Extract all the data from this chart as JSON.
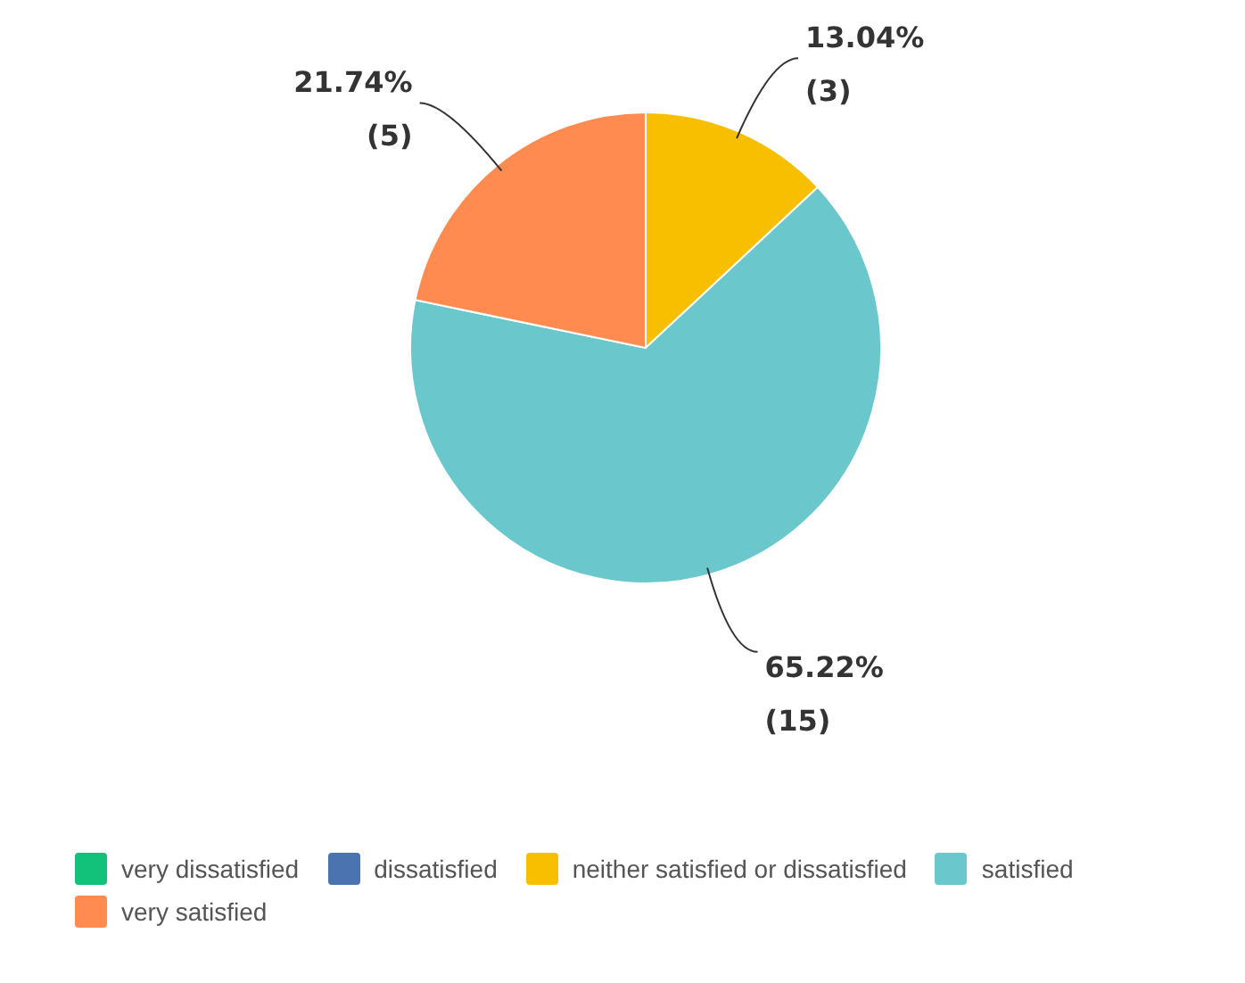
{
  "chart_data": {
    "type": "pie",
    "categories": [
      "very dissatisfied",
      "dissatisfied",
      "neither satisfied or dissatisfied",
      "satisfied",
      "very satisfied"
    ],
    "values": [
      0,
      0,
      3,
      15,
      5
    ],
    "colors": [
      "#13c27a",
      "#4b73b0",
      "#f8be00",
      "#6ac8cc",
      "#ff8b50"
    ],
    "value_labels": [
      null,
      null,
      "13.04%\n(3)",
      "65.22%\n(15)",
      "21.74%\n(5)"
    ],
    "legend": "bottom"
  }
}
